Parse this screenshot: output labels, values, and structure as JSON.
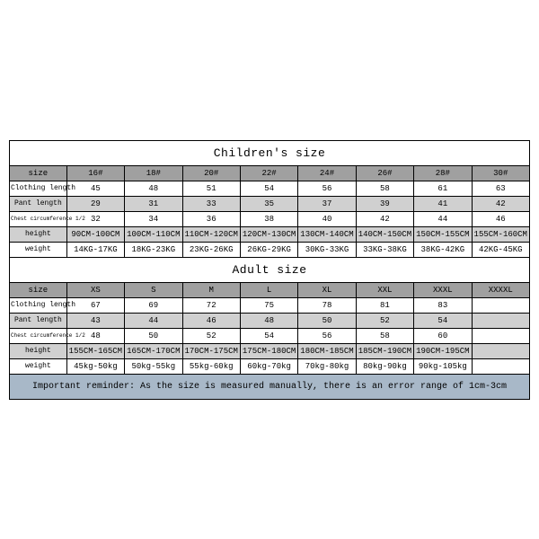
{
  "children": {
    "title": "Children's size",
    "headers": [
      "size",
      "16#",
      "18#",
      "20#",
      "22#",
      "24#",
      "26#",
      "28#",
      "30#"
    ],
    "rows": [
      {
        "label": "Clothing length",
        "cells": [
          "45",
          "48",
          "51",
          "54",
          "56",
          "58",
          "61",
          "63"
        ]
      },
      {
        "label": "Pant length",
        "cells": [
          "29",
          "31",
          "33",
          "35",
          "37",
          "39",
          "41",
          "42"
        ]
      },
      {
        "label": "Chest circumference 1/2",
        "cells": [
          "32",
          "34",
          "36",
          "38",
          "40",
          "42",
          "44",
          "46"
        ]
      },
      {
        "label": "height",
        "cells": [
          "90CM-100CM",
          "100CM-110CM",
          "110CM-120CM",
          "120CM-130CM",
          "130CM-140CM",
          "140CM-150CM",
          "150CM-155CM",
          "155CM-160CM"
        ]
      },
      {
        "label": "weight",
        "cells": [
          "14KG-17KG",
          "18KG-23KG",
          "23KG-26KG",
          "26KG-29KG",
          "30KG-33KG",
          "33KG-38KG",
          "38KG-42KG",
          "42KG-45KG"
        ]
      }
    ]
  },
  "adult": {
    "title": "Adult size",
    "headers": [
      "size",
      "XS",
      "S",
      "M",
      "L",
      "XL",
      "XXL",
      "XXXL",
      "XXXXL"
    ],
    "rows": [
      {
        "label": "Clothing length",
        "cells": [
          "67",
          "69",
          "72",
          "75",
          "78",
          "81",
          "83",
          ""
        ]
      },
      {
        "label": "Pant length",
        "cells": [
          "43",
          "44",
          "46",
          "48",
          "50",
          "52",
          "54",
          ""
        ]
      },
      {
        "label": "Chest circumference 1/2",
        "cells": [
          "48",
          "50",
          "52",
          "54",
          "56",
          "58",
          "60",
          ""
        ]
      },
      {
        "label": "height",
        "cells": [
          "155CM-165CM",
          "165CM-170CM",
          "170CM-175CM",
          "175CM-180CM",
          "180CM-185CM",
          "185CM-190CM",
          "190CM-195CM",
          ""
        ]
      },
      {
        "label": "weight",
        "cells": [
          "45kg-50kg",
          "50kg-55kg",
          "55kg-60kg",
          "60kg-70kg",
          "70kg-80kg",
          "80kg-90kg",
          "90kg-105kg",
          ""
        ]
      }
    ]
  },
  "note": "Important reminder: As the size is measured manually, there is an error range of 1cm-3cm"
}
